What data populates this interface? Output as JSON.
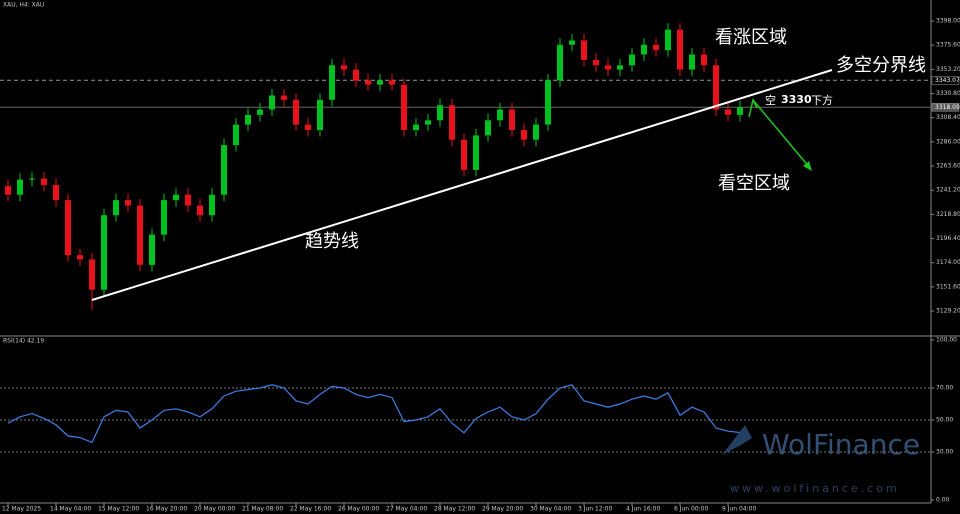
{
  "chart_data": [
    {
      "type": "candlestick",
      "title": "XAU, H4: XAU",
      "categories": [
        "12 May 2025",
        null,
        null,
        null,
        "14 May 04:00",
        null,
        null,
        null,
        "15 May 12:00",
        null,
        null,
        null,
        "16 May 20:00",
        null,
        null,
        null,
        "20 May 00:00",
        null,
        null,
        null,
        "21 May 08:00",
        null,
        null,
        null,
        "22 May 16:00",
        null,
        null,
        null,
        "26 May 00:00",
        null,
        null,
        null,
        "27 May 04:00",
        null,
        null,
        null,
        "28 May 12:00",
        null,
        null,
        null,
        "29 May 20:00",
        null,
        null,
        null,
        "30 May 04:00",
        null,
        null,
        null,
        "3 Jun 12:00",
        null,
        null,
        null,
        "4 Jun 16:00",
        null,
        null,
        null,
        "6 Jun 00:00",
        null,
        null,
        null,
        "9 Jun 04:00",
        null
      ],
      "open": [
        3245,
        3237,
        3251,
        3252,
        3246,
        3232,
        3181,
        3177,
        3149,
        3218,
        3232,
        3227,
        3172,
        3200,
        3232,
        3237,
        3227,
        3218,
        3237,
        3283,
        3302,
        3311,
        3316,
        3329,
        3325,
        3302,
        3297,
        3325,
        3357,
        3353,
        3343,
        3339,
        3343,
        3339,
        3297,
        3302,
        3306,
        3320,
        3288,
        3260,
        3292,
        3306,
        3316,
        3297,
        3288,
        3302,
        3343,
        3376,
        3380,
        3362,
        3357,
        3353,
        3357,
        3367,
        3376,
        3371,
        3390,
        3353,
        3367,
        3357,
        3316,
        3311
      ],
      "high": [
        3251,
        3257,
        3258,
        3258,
        3252,
        3238,
        3187,
        3183,
        3224,
        3238,
        3238,
        3233,
        3206,
        3238,
        3243,
        3243,
        3233,
        3243,
        3289,
        3308,
        3317,
        3322,
        3335,
        3335,
        3331,
        3308,
        3331,
        3363,
        3363,
        3359,
        3349,
        3349,
        3349,
        3345,
        3308,
        3312,
        3326,
        3326,
        3294,
        3298,
        3312,
        3322,
        3322,
        3303,
        3308,
        3349,
        3382,
        3386,
        3386,
        3368,
        3363,
        3363,
        3373,
        3382,
        3382,
        3396,
        3396,
        3373,
        3373,
        3363,
        3322,
        3324
      ],
      "low": [
        3231,
        3231,
        3245,
        3240,
        3226,
        3175,
        3171,
        3130,
        3143,
        3212,
        3221,
        3166,
        3166,
        3194,
        3226,
        3221,
        3212,
        3212,
        3231,
        3277,
        3296,
        3305,
        3310,
        3319,
        3296,
        3291,
        3291,
        3319,
        3347,
        3337,
        3333,
        3333,
        3333,
        3291,
        3291,
        3296,
        3300,
        3282,
        3254,
        3254,
        3286,
        3300,
        3291,
        3282,
        3282,
        3296,
        3337,
        3370,
        3356,
        3351,
        3347,
        3347,
        3351,
        3361,
        3365,
        3365,
        3347,
        3347,
        3351,
        3310,
        3305,
        3305
      ],
      "close": [
        3237,
        3251,
        3252,
        3246,
        3232,
        3181,
        3177,
        3149,
        3218,
        3232,
        3227,
        3172,
        3200,
        3232,
        3237,
        3227,
        3218,
        3237,
        3283,
        3302,
        3311,
        3316,
        3329,
        3325,
        3302,
        3297,
        3325,
        3357,
        3353,
        3343,
        3339,
        3343,
        3339,
        3297,
        3302,
        3306,
        3320,
        3288,
        3260,
        3292,
        3306,
        3316,
        3297,
        3288,
        3302,
        3343,
        3376,
        3380,
        3362,
        3357,
        3353,
        3357,
        3367,
        3376,
        3371,
        3390,
        3353,
        3367,
        3357,
        3316,
        3311,
        3318
      ],
      "up_color": "#00c21e",
      "down_color": "#e8121a",
      "ylim": [
        3107,
        3417.5
      ],
      "yticks": [
        {
          "value": 3398,
          "label": "3398.00"
        },
        {
          "value": 3375.6,
          "label": "3375.60"
        },
        {
          "value": 3353.2,
          "label": "3353.20"
        },
        {
          "value": 3330.8,
          "label": "3330.80"
        },
        {
          "value": 3308.4,
          "label": "3308.40"
        },
        {
          "value": 3286,
          "label": "3286.00"
        },
        {
          "value": 3263.6,
          "label": "3263.60"
        },
        {
          "value": 3241.2,
          "label": "3241.20"
        },
        {
          "value": 3218.8,
          "label": "3218.80"
        },
        {
          "value": 3196.4,
          "label": "3196.40"
        },
        {
          "value": 3174,
          "label": "3174.00"
        },
        {
          "value": 3151.6,
          "label": "3151.60"
        },
        {
          "value": 3129.2,
          "label": "3129.20"
        }
      ],
      "price_lines": [
        3343.07,
        3318.09
      ],
      "annotations": {
        "bull_zone": "看涨区域",
        "divider": "多空分界线",
        "short": "空",
        "level": 3330,
        "below": "下方",
        "bear_zone": "看空区域",
        "trend": "趋势线"
      }
    },
    {
      "type": "line",
      "title": "RSI(14) 42.19",
      "color": "#3f7fe6",
      "values": [
        48,
        52,
        54,
        51,
        47,
        40,
        39,
        36,
        52,
        56,
        55,
        45,
        50,
        56,
        57,
        55,
        52,
        57,
        65,
        68,
        69,
        70,
        72,
        70,
        62,
        60,
        66,
        71,
        70,
        66,
        64,
        66,
        64,
        49,
        50,
        52,
        57,
        48,
        42,
        51,
        55,
        58,
        52,
        50,
        54,
        63,
        70,
        72,
        62,
        60,
        58,
        60,
        63,
        65,
        63,
        67,
        53,
        58,
        55,
        45,
        43,
        42.19
      ],
      "ylim": [
        0,
        100
      ],
      "yticks": [
        {
          "value": 100,
          "label": "100.00"
        },
        {
          "value": 70,
          "label": "70.00"
        },
        {
          "value": 50,
          "label": "50.00"
        },
        {
          "value": 30,
          "label": "30.00"
        },
        {
          "value": 0,
          "label": "0.00"
        }
      ]
    }
  ],
  "watermark": {
    "brand": "WolFinance",
    "site": "www.wolfinance.com"
  }
}
